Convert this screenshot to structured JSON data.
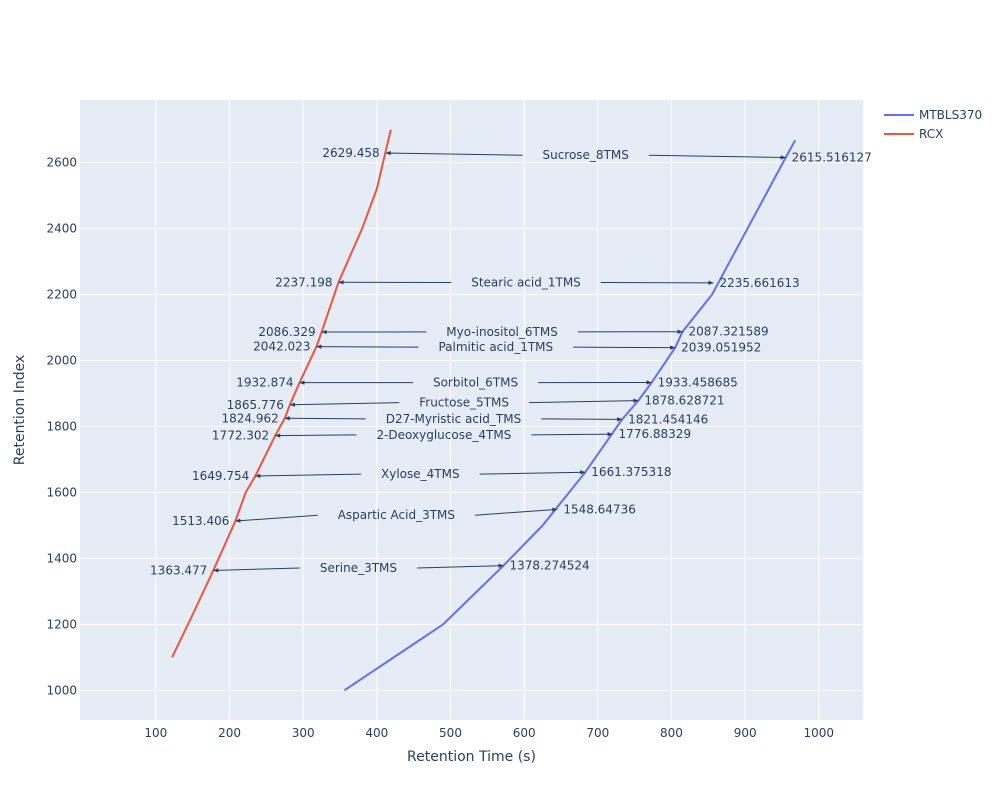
{
  "chart_data": {
    "type": "line",
    "xlabel": "Retention Time (s)",
    "ylabel": "Retention Index",
    "xlim": [
      -3,
      1060
    ],
    "ylim": [
      910,
      2790
    ],
    "x_ticks": [
      "100",
      "200",
      "300",
      "400",
      "500",
      "600",
      "700",
      "800",
      "900",
      "1000"
    ],
    "y_ticks": [
      "1000",
      "1200",
      "1400",
      "1600",
      "1800",
      "2000",
      "2200",
      "2400",
      "2600"
    ],
    "legend_position": "top-right",
    "series": [
      {
        "name": "MTBLS370",
        "color": "#636efa",
        "x": [
          356,
          490,
          572,
          625,
          683,
          733,
          755,
          773,
          805,
          815,
          855,
          955,
          968
        ],
        "y": [
          1000,
          1200,
          1378.3,
          1500,
          1661.4,
          1821.5,
          1878.6,
          1933.5,
          2039.1,
          2087.3,
          2200,
          2615.5,
          2668
        ]
      },
      {
        "name": "RCX",
        "color": "#ef553b",
        "x": [
          122,
          150,
          178,
          208,
          222,
          235,
          262,
          275,
          282,
          295,
          318,
          325,
          348,
          380,
          400,
          419
        ],
        "y": [
          1100,
          1230,
          1363.5,
          1513.4,
          1600,
          1649.8,
          1772.3,
          1825,
          1865.8,
          1932.9,
          2042,
          2086.3,
          2237.2,
          2400,
          2520,
          2700
        ]
      }
    ],
    "annotations": [
      {
        "compound": "Sucrose_8TMS",
        "rcx_value": "2629.458",
        "mtbls_value": "2615.516127",
        "rcx_point": [
          412,
          2629.458
        ],
        "mtbls_point": [
          955,
          2615.516
        ]
      },
      {
        "compound": "Stearic acid_1TMS",
        "rcx_value": "2237.198",
        "mtbls_value": "2235.661613",
        "rcx_point": [
          348,
          2237.198
        ],
        "mtbls_point": [
          857,
          2235.662
        ]
      },
      {
        "compound": "Myo-inositol_6TMS",
        "rcx_value": "2086.329",
        "mtbls_value": "2087.321589",
        "rcx_point": [
          325,
          2086.329
        ],
        "mtbls_point": [
          815,
          2087.322
        ]
      },
      {
        "compound": "Palmitic acid_1TMS",
        "rcx_value": "2042.023",
        "mtbls_value": "2039.051952",
        "rcx_point": [
          318,
          2042.023
        ],
        "mtbls_point": [
          805,
          2039.052
        ]
      },
      {
        "compound": "Sorbitol_6TMS",
        "rcx_value": "1932.874",
        "mtbls_value": "1933.458685",
        "rcx_point": [
          295,
          1932.874
        ],
        "mtbls_point": [
          773,
          1933.459
        ]
      },
      {
        "compound": "Fructose_5TMS",
        "rcx_value": "1865.776",
        "mtbls_value": "1878.628721",
        "rcx_point": [
          282,
          1865.776
        ],
        "mtbls_point": [
          755,
          1878.629
        ]
      },
      {
        "compound": "D27-Myristic acid_TMS",
        "rcx_value": "1824.962",
        "mtbls_value": "1821.454146",
        "rcx_point": [
          275,
          1824.962
        ],
        "mtbls_point": [
          733,
          1821.454
        ]
      },
      {
        "compound": "2-Deoxyglucose_4TMS",
        "rcx_value": "1772.302",
        "mtbls_value": "1776.88329",
        "rcx_point": [
          262,
          1772.302
        ],
        "mtbls_point": [
          720,
          1776.883
        ]
      },
      {
        "compound": "Xylose_4TMS",
        "rcx_value": "1649.754",
        "mtbls_value": "1661.375318",
        "rcx_point": [
          235,
          1649.754
        ],
        "mtbls_point": [
          683,
          1661.375
        ]
      },
      {
        "compound": "Aspartic Acid_3TMS",
        "rcx_value": "1513.406",
        "mtbls_value": "1548.64736",
        "rcx_point": [
          208,
          1513.406
        ],
        "mtbls_point": [
          645,
          1548.647
        ]
      },
      {
        "compound": "Serine_3TMS",
        "rcx_value": "1363.477",
        "mtbls_value": "1378.274524",
        "rcx_point": [
          178,
          1363.477
        ],
        "mtbls_point": [
          572,
          1378.275
        ]
      }
    ]
  }
}
